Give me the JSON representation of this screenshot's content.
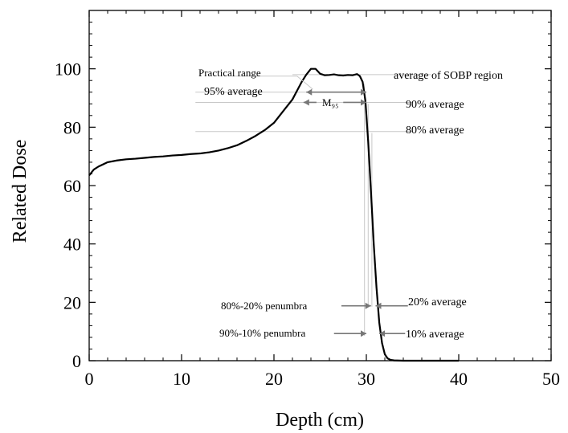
{
  "chart_data": {
    "type": "line",
    "xlabel": "Depth (cm)",
    "ylabel": "Related Dose",
    "xlim": [
      0,
      50
    ],
    "ylim": [
      0,
      120
    ],
    "x_ticks": [
      "0",
      "10",
      "20",
      "30",
      "40",
      "50"
    ],
    "y_ticks": [
      "0",
      "20",
      "40",
      "60",
      "80",
      "100"
    ],
    "grid": false,
    "series": [
      {
        "color": "#000000",
        "x": [
          0,
          0.5,
          1,
          2,
          3,
          4,
          5,
          6,
          7,
          8,
          9,
          10,
          11,
          12,
          13,
          14,
          15,
          16,
          17,
          18,
          19,
          20,
          21,
          22,
          22.5,
          23,
          23.5,
          24,
          24.5,
          25,
          25.5,
          26,
          26.5,
          27,
          27.5,
          28,
          28.5,
          29,
          29.3,
          29.6,
          29.9,
          30.2,
          30.5,
          30.8,
          31.1,
          31.4,
          31.7,
          32.0,
          32.3,
          32.6,
          33,
          34,
          36,
          38,
          40
        ],
        "y": [
          63.5,
          65.5,
          66.5,
          68,
          68.6,
          69,
          69.2,
          69.5,
          69.8,
          70,
          70.3,
          70.5,
          70.8,
          71,
          71.4,
          72,
          72.8,
          73.8,
          75.3,
          77,
          79,
          81.5,
          85.5,
          89.5,
          92.5,
          95.5,
          98,
          100,
          100,
          98.3,
          97.8,
          97.9,
          98.1,
          97.8,
          97.7,
          97.9,
          97.8,
          98.2,
          97.5,
          95.5,
          89,
          75,
          58,
          40,
          25,
          13,
          6,
          2.2,
          0.8,
          0.3,
          0.1,
          0,
          0,
          0,
          0
        ]
      }
    ],
    "annotations": {
      "practical_range": "Practical range",
      "avg_sobp": "average of SOBP region",
      "avg95": "95% average",
      "m95": "M₉₅",
      "avg90": "90% average",
      "avg80": "80% average",
      "pen8020": "80%-20% penumbra",
      "avg20": "20% average",
      "pen9010": "90%-10% penumbra",
      "avg10": "10% average"
    }
  }
}
